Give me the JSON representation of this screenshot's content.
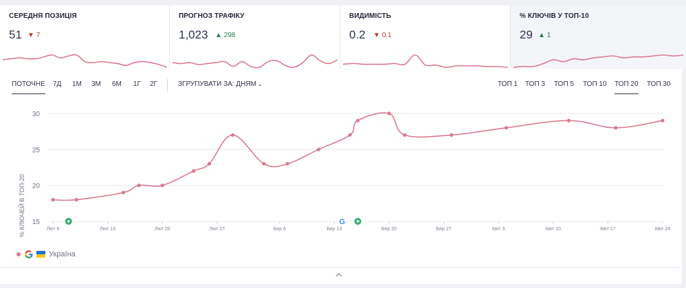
{
  "metrics": [
    {
      "title": "СЕРЕДНЯ ПОЗИЦІЯ",
      "value": "51",
      "delta": "7",
      "direction": "down",
      "delta_icon": "triangle-down-icon"
    },
    {
      "title": "ПРОГНОЗ ТРАФІКУ",
      "value": "1,023",
      "delta": "298",
      "direction": "up",
      "delta_icon": "triangle-up-icon"
    },
    {
      "title": "ВИДИМІСТЬ",
      "value": "0.2",
      "delta": "0.1",
      "direction": "down",
      "delta_icon": "triangle-down-icon"
    },
    {
      "title": "% КЛЮЧІВ У ТОП-10",
      "value": "29",
      "delta": "1",
      "direction": "up",
      "delta_icon": "triangle-up-icon"
    }
  ],
  "periods": [
    "ПОТОЧНЕ",
    "7Д",
    "1М",
    "3М",
    "6М",
    "1Г",
    "2Г"
  ],
  "active_period": "ПОТОЧНЕ",
  "group_by": {
    "label": "ЗГРУПУВАТИ ЗА:",
    "value": "ДНЯМ",
    "icon": "chevron-down-icon"
  },
  "top_filters": [
    "ТОП 1",
    "ТОП 3",
    "ТОП 5",
    "ТОП 10",
    "ТОП 20",
    "ТОП 30"
  ],
  "active_top": "ТОП 20",
  "legend": {
    "engine_icon": "google-icon",
    "flag_icon": "ukraine-flag-icon",
    "label": "Україна"
  },
  "collapse_icon": "chevron-up-icon",
  "colors": {
    "series": "#d97b8f",
    "annotation": "#2eaa6b",
    "text": "#2c2f40",
    "down": "#c0392b",
    "up": "#1e7b4e"
  },
  "chart_data": {
    "type": "line",
    "ylabel": "% КЛЮЧЕЙ В ТОП-20",
    "ylim": [
      15,
      30
    ],
    "yticks": [
      15,
      20,
      25,
      30
    ],
    "xlim": [
      "2024-02-06",
      "2024-04-24"
    ],
    "xticks": [
      {
        "date": "2024-02-06",
        "label": "Лют 6"
      },
      {
        "date": "2024-02-13",
        "label": "Лют 13"
      },
      {
        "date": "2024-02-20",
        "label": "Лют 20"
      },
      {
        "date": "2024-02-27",
        "label": "Лют 27"
      },
      {
        "date": "2024-03-06",
        "label": "Бер 6"
      },
      {
        "date": "2024-03-13",
        "label": "Бер 13"
      },
      {
        "date": "2024-03-20",
        "label": "Бер 20"
      },
      {
        "date": "2024-03-27",
        "label": "Бер 27"
      },
      {
        "date": "2024-04-03",
        "label": "Квіт 3"
      },
      {
        "date": "2024-04-10",
        "label": "Квіт 10"
      },
      {
        "date": "2024-04-17",
        "label": "Квіт 17"
      },
      {
        "date": "2024-04-24",
        "label": "Квіт 24"
      }
    ],
    "grid": true,
    "series": [
      {
        "points": [
          {
            "x": "2024-02-06",
            "y": 18
          },
          {
            "x": "2024-02-09",
            "y": 18
          },
          {
            "x": "2024-02-15",
            "y": 19
          },
          {
            "x": "2024-02-17",
            "y": 20
          },
          {
            "x": "2024-02-20",
            "y": 20
          },
          {
            "x": "2024-02-24",
            "y": 22
          },
          {
            "x": "2024-02-26",
            "y": 23
          },
          {
            "x": "2024-02-29",
            "y": 27
          },
          {
            "x": "2024-03-04",
            "y": 23
          },
          {
            "x": "2024-03-07",
            "y": 23
          },
          {
            "x": "2024-03-11",
            "y": 25
          },
          {
            "x": "2024-03-15",
            "y": 27
          },
          {
            "x": "2024-03-16",
            "y": 29
          },
          {
            "x": "2024-03-20",
            "y": 30
          },
          {
            "x": "2024-03-22",
            "y": 27
          },
          {
            "x": "2024-03-28",
            "y": 27
          },
          {
            "x": "2024-04-04",
            "y": 28
          },
          {
            "x": "2024-04-12",
            "y": 29
          },
          {
            "x": "2024-04-18",
            "y": 28
          },
          {
            "x": "2024-04-24",
            "y": 29
          }
        ]
      }
    ],
    "annotations": [
      {
        "date": "2024-02-08",
        "icon": "plus-icon"
      },
      {
        "date": "2024-03-14",
        "icon": "google-icon"
      },
      {
        "date": "2024-03-16",
        "icon": "plus-icon"
      }
    ],
    "sparklines": [
      [
        8,
        9,
        10,
        9,
        9,
        11,
        13,
        10,
        12,
        13,
        6,
        5,
        6,
        5,
        4,
        2,
        5,
        6,
        5,
        3,
        0
      ],
      [
        5,
        4,
        5,
        3,
        4,
        5,
        6,
        1,
        6,
        1,
        0,
        6,
        7,
        2,
        0,
        5,
        13,
        7,
        4,
        8
      ],
      [
        4,
        5,
        4,
        4,
        4,
        5,
        4,
        16,
        3,
        3,
        0,
        2,
        2,
        2,
        1,
        1,
        0
      ],
      [
        5,
        6,
        6,
        9,
        13,
        11,
        14,
        13,
        15,
        16,
        17,
        15,
        16,
        16,
        17,
        18,
        17,
        18
      ]
    ]
  }
}
